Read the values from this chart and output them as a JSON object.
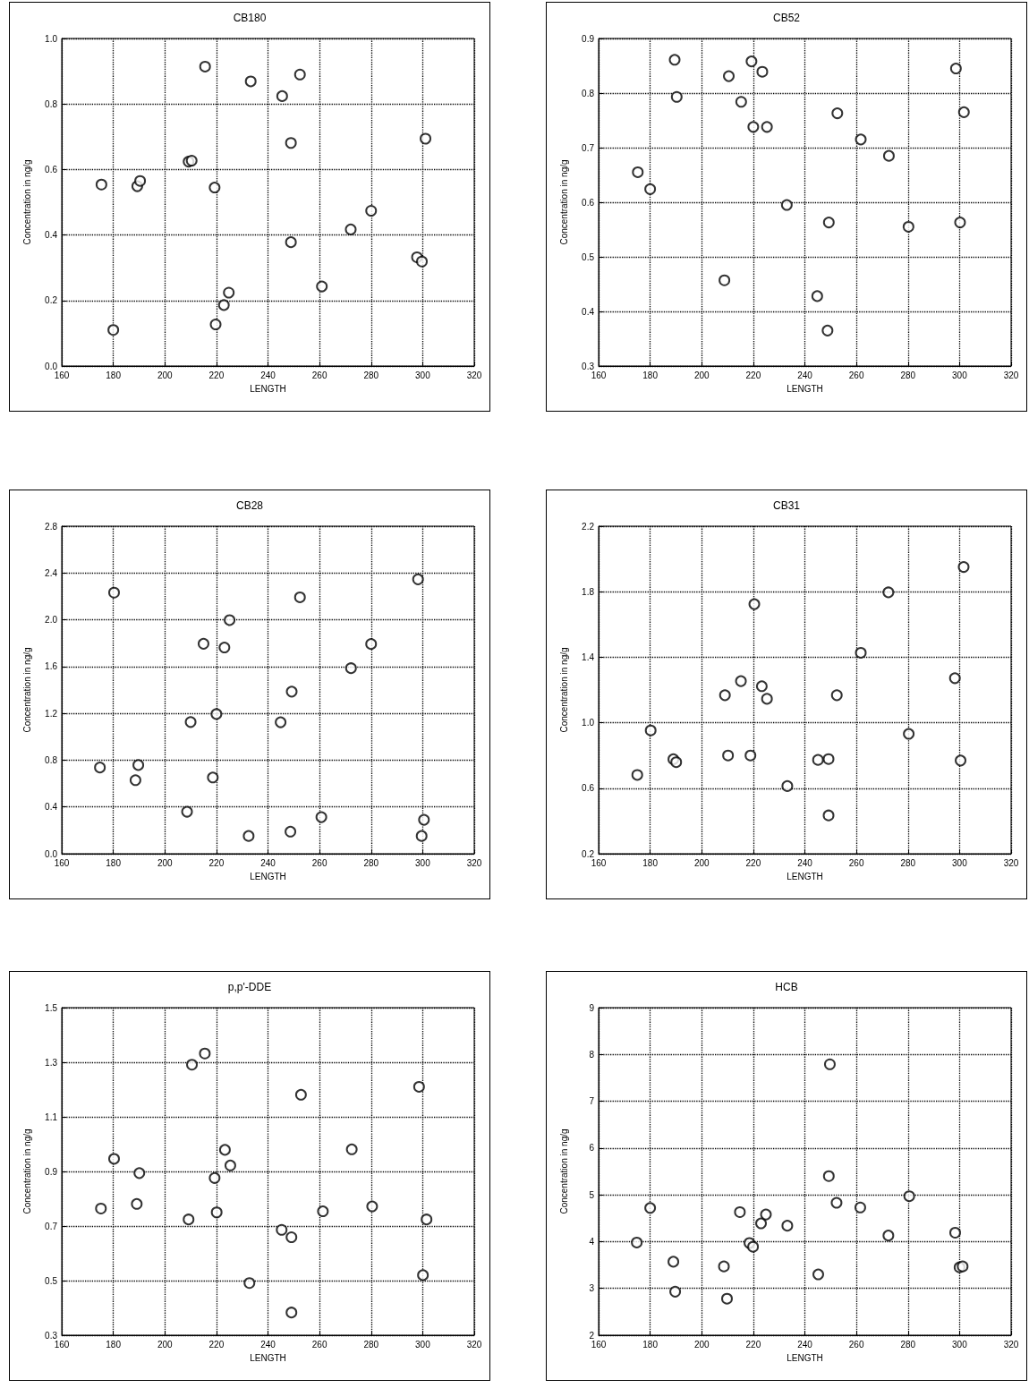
{
  "chart_data": [
    {
      "type": "scatter",
      "title": "CB180",
      "xlabel": "LENGTH",
      "ylabel": "Concentration in ng/g",
      "xlim": [
        160,
        320
      ],
      "xticks": [
        160,
        180,
        200,
        220,
        240,
        260,
        280,
        300,
        320
      ],
      "ylim": [
        0,
        1
      ],
      "yticks": [
        {
          "value": 0,
          "label": "0.0"
        },
        0.2,
        0.4,
        0.6,
        0.8,
        {
          "value": 1,
          "label": "1.0"
        }
      ],
      "grid": true,
      "marker": "circle",
      "x": [
        175.4,
        180,
        189.3,
        190.4,
        209.2,
        210.4,
        215.6,
        219.3,
        219.7,
        222.9,
        224.8,
        233.3,
        245.5,
        248.9,
        248.9,
        252.4,
        260.9,
        272.1,
        280,
        297.8,
        299.7,
        301.1
      ],
      "series": [
        {
          "color": "#000000",
          "values": [
            0.554,
            0.11,
            0.549,
            0.565,
            0.624,
            0.627,
            0.914,
            0.545,
            0.127,
            0.186,
            0.224,
            0.869,
            0.824,
            0.681,
            0.378,
            0.89,
            0.243,
            0.417,
            0.474,
            0.332,
            0.319,
            0.694
          ]
        }
      ]
    },
    {
      "type": "scatter",
      "title": "CB52",
      "xlabel": "LENGTH",
      "ylabel": "Concentration in ng/g",
      "xlim": [
        160,
        320
      ],
      "xticks": [
        160,
        180,
        200,
        220,
        240,
        260,
        280,
        300,
        320
      ],
      "ylim": [
        0.3,
        0.9
      ],
      "yticks": [
        0.3,
        0.4,
        0.5,
        0.6,
        0.7,
        0.8,
        0.9
      ],
      "grid": true,
      "marker": "circle",
      "x": [
        175.2,
        180,
        189.5,
        190.3,
        208.8,
        210.5,
        215.3,
        219.3,
        220,
        223.5,
        225.3,
        233,
        244.8,
        248.8,
        249.3,
        252.6,
        261.7,
        272.6,
        280.2,
        298.6,
        300.2,
        301.7
      ],
      "series": [
        {
          "color": "#000000",
          "values": [
            0.655,
            0.624,
            0.861,
            0.793,
            0.457,
            0.831,
            0.784,
            0.858,
            0.738,
            0.839,
            0.738,
            0.595,
            0.428,
            0.365,
            0.563,
            0.763,
            0.715,
            0.685,
            0.555,
            0.845,
            0.563,
            0.765
          ]
        }
      ]
    },
    {
      "type": "scatter",
      "title": "CB28",
      "xlabel": "LENGTH",
      "ylabel": "Concentration in ng/g",
      "xlim": [
        160,
        320
      ],
      "xticks": [
        160,
        180,
        200,
        220,
        240,
        260,
        280,
        300,
        320
      ],
      "ylim": [
        0,
        2.8
      ],
      "yticks": [
        {
          "value": 0,
          "label": "0.0"
        },
        0.4,
        0.8,
        1.2,
        1.6,
        {
          "value": 2,
          "label": "2.0"
        },
        2.4,
        2.8
      ],
      "grid": true,
      "marker": "circle",
      "x": [
        174.8,
        180.3,
        188.6,
        189.7,
        208.6,
        210,
        215,
        218.6,
        220,
        223.1,
        225.1,
        232.5,
        244.9,
        248.7,
        249.2,
        252.4,
        260.7,
        272.2,
        280,
        298.2,
        299.6,
        300.5
      ],
      "series": [
        {
          "color": "#000000",
          "values": [
            0.737,
            2.232,
            0.629,
            0.758,
            0.359,
            1.126,
            1.795,
            0.652,
            1.194,
            1.763,
            1.997,
            0.152,
            1.124,
            0.189,
            1.386,
            2.192,
            0.313,
            1.586,
            1.793,
            2.346,
            0.152,
            0.29
          ]
        }
      ]
    },
    {
      "type": "scatter",
      "title": "CB31",
      "xlabel": "LENGTH",
      "ylabel": "Concentration in ng/g",
      "xlim": [
        160,
        320
      ],
      "xticks": [
        160,
        180,
        200,
        220,
        240,
        260,
        280,
        300,
        320
      ],
      "ylim": [
        0.2,
        2.2
      ],
      "yticks": [
        0.2,
        0.6,
        {
          "value": 1,
          "label": "1.0"
        },
        1.4,
        1.8,
        2.2
      ],
      "grid": true,
      "marker": "circle",
      "x": [
        175,
        180.2,
        189,
        190.1,
        209,
        210.2,
        215.2,
        218.9,
        220.4,
        223.3,
        225.3,
        233.2,
        245.1,
        249.2,
        249.2,
        252.4,
        261.7,
        272.4,
        280.3,
        298.2,
        300.4,
        301.6
      ],
      "series": [
        {
          "color": "#000000",
          "values": [
            0.681,
            0.953,
            0.777,
            0.759,
            1.168,
            0.8,
            1.254,
            0.8,
            1.724,
            1.223,
            1.146,
            0.613,
            0.773,
            0.778,
            0.434,
            1.168,
            1.427,
            1.796,
            0.932,
            1.272,
            0.769,
            1.951
          ]
        }
      ]
    },
    {
      "type": "scatter",
      "title": "p,p'-DDE",
      "xlabel": "LENGTH",
      "ylabel": "Concentration in ng/g",
      "xlim": [
        160,
        320
      ],
      "xticks": [
        160,
        180,
        200,
        220,
        240,
        260,
        280,
        300,
        320
      ],
      "ylim": [
        0.3,
        1.5
      ],
      "yticks": [
        0.3,
        0.5,
        0.7,
        0.9,
        1.1,
        1.3,
        1.5
      ],
      "grid": true,
      "marker": "circle",
      "x": [
        175.2,
        180.3,
        189.1,
        190.1,
        209.2,
        210.5,
        215.5,
        219.3,
        220.1,
        223.3,
        225.4,
        232.8,
        245.3,
        249.1,
        249.1,
        252.8,
        261.3,
        272.5,
        280.4,
        298.6,
        300.1,
        301.5
      ],
      "series": [
        {
          "color": "#000000",
          "values": [
            0.764,
            0.946,
            0.781,
            0.894,
            0.724,
            1.291,
            1.332,
            0.876,
            0.75,
            0.979,
            0.922,
            0.491,
            0.686,
            0.659,
            0.383,
            1.181,
            0.754,
            0.981,
            0.772,
            1.21,
            0.52,
            0.724
          ]
        }
      ]
    },
    {
      "type": "scatter",
      "title": "HCB",
      "xlabel": "LENGTH",
      "ylabel": "Concentration in ng/g",
      "xlim": [
        160,
        320
      ],
      "xticks": [
        160,
        180,
        200,
        220,
        240,
        260,
        280,
        300,
        320
      ],
      "ylim": [
        2,
        9
      ],
      "yticks": [
        2,
        3,
        4,
        5,
        6,
        7,
        8,
        9
      ],
      "grid": true,
      "marker": "circle",
      "x": [
        174.8,
        180,
        189,
        189.7,
        208.6,
        209.8,
        214.8,
        218.5,
        219.9,
        223,
        224.9,
        233.2,
        245.2,
        249.3,
        249.7,
        252.3,
        261.5,
        272.4,
        280.5,
        298.3,
        300,
        301.2
      ],
      "series": [
        {
          "color": "#000000",
          "values": [
            3.98,
            4.72,
            3.57,
            2.93,
            3.47,
            2.78,
            4.63,
            3.97,
            3.89,
            4.39,
            4.58,
            4.34,
            3.3,
            5.4,
            7.79,
            4.83,
            4.73,
            4.13,
            4.97,
            4.19,
            3.45,
            3.47
          ]
        }
      ]
    }
  ]
}
